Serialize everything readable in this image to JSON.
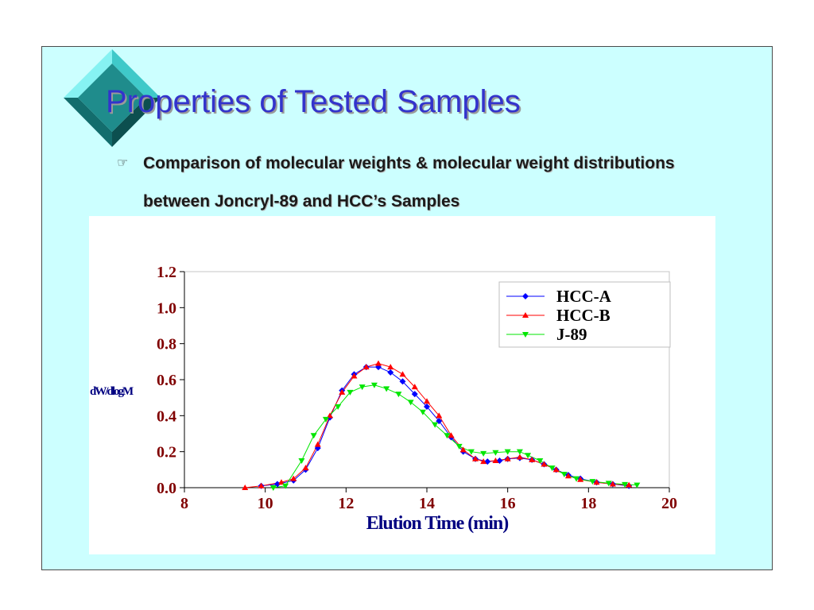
{
  "slide": {
    "title": "Properties of Tested Samples",
    "bullet_icon": "pointing-hand-icon",
    "bullet_line1": "Comparison of molecular weights & molecular weight distributions",
    "bullet_line2": "between Joncryl-89 and HCC’s Samples"
  },
  "colors": {
    "slide_background": "#ccffff",
    "title": "#3333cc",
    "tick_labels": "#800000",
    "axis_titles": "#000080",
    "decor_diamond": "#1f8c8c"
  },
  "chart_data": {
    "type": "line",
    "xlabel": "Elution Time (min)",
    "ylabel": "dW/dlogM",
    "xlim": [
      8,
      20
    ],
    "ylim": [
      0,
      1.2
    ],
    "xticks": [
      "8",
      "10",
      "12",
      "14",
      "16",
      "18",
      "20"
    ],
    "yticks": [
      "0.0",
      "0.2",
      "0.4",
      "0.6",
      "0.8",
      "1.0",
      "1.2"
    ],
    "grid": false,
    "legend_position": "top-right",
    "series": [
      {
        "name": "HCC-A",
        "color": "#0000ff",
        "marker": "diamond",
        "x": [
          9.9,
          10.3,
          10.7,
          11.0,
          11.3,
          11.6,
          11.9,
          12.2,
          12.5,
          12.8,
          13.1,
          13.4,
          13.7,
          14.0,
          14.3,
          14.6,
          14.9,
          15.2,
          15.5,
          15.8,
          16.0,
          16.3,
          16.6,
          16.9,
          17.2,
          17.5,
          17.8,
          18.2,
          18.6,
          19.0
        ],
        "y": [
          0.01,
          0.02,
          0.04,
          0.1,
          0.22,
          0.39,
          0.54,
          0.63,
          0.67,
          0.67,
          0.64,
          0.59,
          0.52,
          0.45,
          0.37,
          0.28,
          0.2,
          0.16,
          0.145,
          0.15,
          0.16,
          0.165,
          0.155,
          0.13,
          0.1,
          0.07,
          0.05,
          0.03,
          0.02,
          0.01
        ]
      },
      {
        "name": "HCC-B",
        "color": "#ff0000",
        "marker": "triangle-up",
        "x": [
          9.5,
          9.9,
          10.4,
          10.7,
          11.0,
          11.3,
          11.6,
          11.9,
          12.2,
          12.5,
          12.8,
          13.1,
          13.4,
          13.7,
          14.0,
          14.3,
          14.6,
          14.9,
          15.2,
          15.4,
          15.7,
          16.0,
          16.3,
          16.6,
          16.9,
          17.2,
          17.5,
          17.8,
          18.2,
          18.6,
          19.0
        ],
        "y": [
          0.0,
          0.01,
          0.03,
          0.05,
          0.11,
          0.24,
          0.4,
          0.53,
          0.62,
          0.67,
          0.69,
          0.67,
          0.63,
          0.56,
          0.48,
          0.4,
          0.29,
          0.21,
          0.16,
          0.145,
          0.15,
          0.16,
          0.17,
          0.155,
          0.13,
          0.1,
          0.065,
          0.045,
          0.03,
          0.02,
          0.015
        ]
      },
      {
        "name": "J-89",
        "color": "#00e600",
        "marker": "triangle-down",
        "x": [
          10.2,
          10.5,
          10.9,
          11.2,
          11.5,
          11.8,
          12.1,
          12.4,
          12.7,
          13.0,
          13.3,
          13.6,
          13.9,
          14.2,
          14.5,
          14.8,
          15.1,
          15.4,
          15.7,
          16.0,
          16.3,
          16.5,
          16.8,
          17.1,
          17.4,
          17.7,
          18.1,
          18.5,
          18.9,
          19.2
        ],
        "y": [
          0.0,
          0.01,
          0.15,
          0.29,
          0.38,
          0.45,
          0.53,
          0.56,
          0.57,
          0.55,
          0.52,
          0.475,
          0.42,
          0.35,
          0.29,
          0.23,
          0.2,
          0.19,
          0.195,
          0.2,
          0.2,
          0.18,
          0.15,
          0.11,
          0.075,
          0.05,
          0.035,
          0.025,
          0.018,
          0.015
        ]
      }
    ]
  }
}
